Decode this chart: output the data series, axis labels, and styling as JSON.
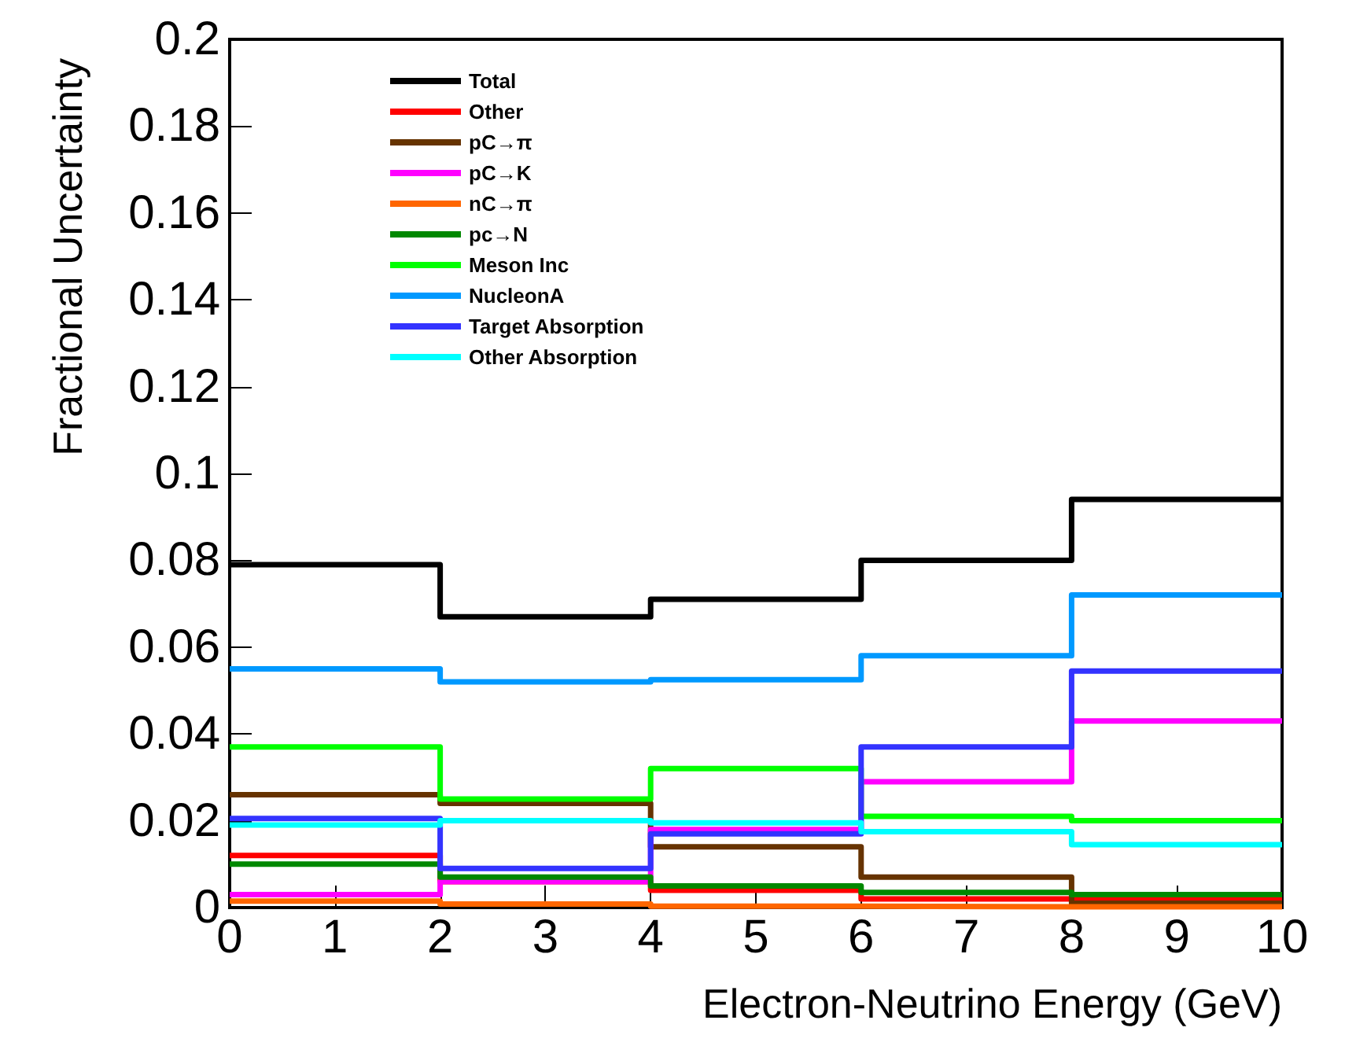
{
  "chart_data": {
    "type": "histogram",
    "xlabel": "Electron-Neutrino Energy (GeV)",
    "ylabel": "Fractional Uncertainty",
    "bins": [
      0,
      2,
      4,
      6,
      8,
      10
    ],
    "series": [
      {
        "name": "Total",
        "color": "#000000",
        "values": [
          0.079,
          0.067,
          0.071,
          0.08,
          0.094
        ]
      },
      {
        "name": "Other",
        "color": "#ff0000",
        "values": [
          0.012,
          0.006,
          0.004,
          0.002,
          0.002
        ]
      },
      {
        "name": "pC→π",
        "color": "#663300",
        "values": [
          0.026,
          0.024,
          0.014,
          0.007,
          0.001
        ]
      },
      {
        "name": "pC→K",
        "color": "#ff00ff",
        "values": [
          0.003,
          0.006,
          0.018,
          0.029,
          0.043
        ]
      },
      {
        "name": "nC→π",
        "color": "#ff6600",
        "values": [
          0.0015,
          0.0008,
          0.0003,
          0.0002,
          0.0002
        ]
      },
      {
        "name": "pc→N",
        "color": "#008800",
        "values": [
          0.01,
          0.007,
          0.005,
          0.0035,
          0.003
        ]
      },
      {
        "name": "Meson Inc",
        "color": "#00ff00",
        "values": [
          0.037,
          0.025,
          0.032,
          0.021,
          0.02
        ]
      },
      {
        "name": "NucleonA",
        "color": "#0099ff",
        "values": [
          0.055,
          0.052,
          0.0525,
          0.058,
          0.072
        ]
      },
      {
        "name": "Target Absorption",
        "color": "#3333ff",
        "values": [
          0.0205,
          0.009,
          0.017,
          0.037,
          0.0545
        ]
      },
      {
        "name": "Other Absorption",
        "color": "#00ffff",
        "values": [
          0.019,
          0.02,
          0.0195,
          0.0175,
          0.0145
        ]
      }
    ],
    "xlim": [
      0,
      10
    ],
    "xticks": [
      0,
      1,
      2,
      3,
      4,
      5,
      6,
      7,
      8,
      9,
      10
    ],
    "ylim": [
      0,
      0.2
    ],
    "yticks": [
      0,
      0.02,
      0.04,
      0.06,
      0.08,
      0.1,
      0.12,
      0.14,
      0.16,
      0.18,
      0.2
    ],
    "grid": false,
    "legend": "top left",
    "line_style": "solid"
  }
}
